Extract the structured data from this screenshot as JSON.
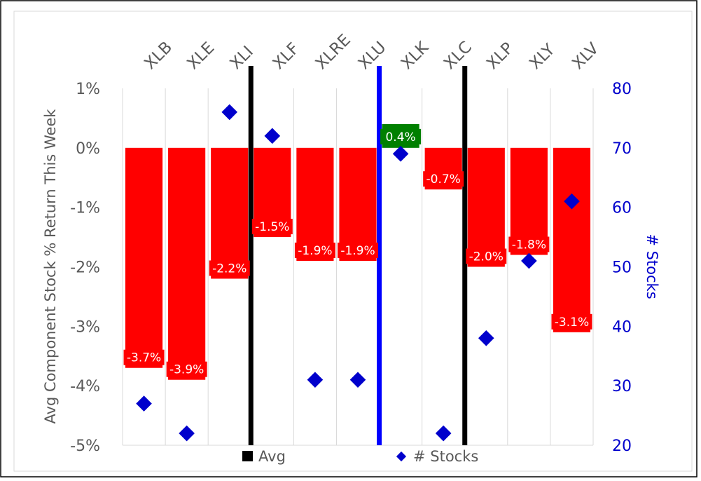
{
  "chart_data": {
    "type": "bar",
    "categories": [
      "XLB",
      "XLE",
      "XLI",
      "XLF",
      "XLRE",
      "XLU",
      "XLK",
      "XLC",
      "XLP",
      "XLY",
      "XLV"
    ],
    "series": [
      {
        "values": [
          -3.7,
          -3.9,
          -2.2,
          -1.5,
          -1.9,
          -1.9,
          0.4,
          -0.7,
          -2.0,
          -1.8,
          -3.1
        ],
        "value_labels": [
          "-3.7%",
          "-3.9%",
          "-2.2%",
          "-1.5%",
          "-1.9%",
          "-1.9%",
          "0.4%",
          "-0.7%",
          "-2.0%",
          "-1.8%",
          "-3.1%"
        ]
      },
      {
        "name": "# Stocks",
        "type": "scatter",
        "axis": "right",
        "values": [
          27,
          22,
          76,
          72,
          31,
          31,
          69,
          22,
          38,
          51,
          61
        ]
      }
    ],
    "avg_markers": [
      {
        "name": "Avg",
        "after_category_index": 2
      },
      {
        "name": "Avg",
        "after_category_index": 7
      }
    ],
    "highlight_marker": {
      "after_category_index": 5
    },
    "ylabel": "Avg Component Stock % Return This Week",
    "y2label": "# Stocks",
    "ylim": [
      -5,
      1
    ],
    "y2lim": [
      20,
      80
    ],
    "yticks": [
      "1%",
      "0%",
      "-1%",
      "-2%",
      "-3%",
      "-4%",
      "-5%"
    ],
    "y2ticks": [
      "80",
      "70",
      "60",
      "50",
      "40",
      "30",
      "20"
    ],
    "legend": {
      "placement": "bottom",
      "entries": [
        "Avg",
        "# Stocks"
      ]
    },
    "grid": "vertical",
    "colors": {
      "negative_bar": "#ff0000",
      "positive_bar": "#008000",
      "marker": "#0000cc",
      "avg_line": "#000000",
      "highlight_line": "#0000ff",
      "right_axis_text": "#0000cc",
      "left_axis_text": "#595959"
    }
  }
}
